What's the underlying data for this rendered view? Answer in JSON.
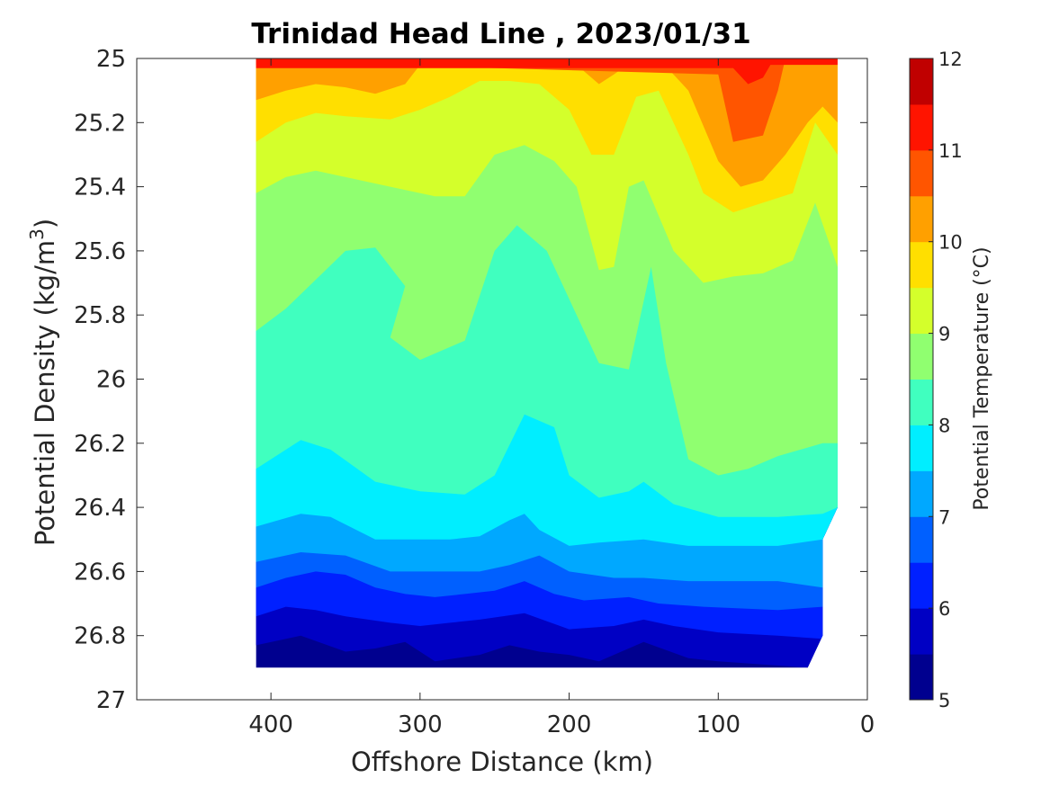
{
  "chart_data": {
    "type": "contour",
    "title": "Trinidad Head Line , 2023/01/31",
    "xlabel": "Offshore Distance (km)",
    "ylabel": "Potential Density (kg/m",
    "ylabel_sup": "3",
    "ylabel_close": ")",
    "xlim": [
      490,
      0
    ],
    "ylim": [
      25,
      27
    ],
    "y_reversed": true,
    "x_ticks": [
      "400",
      "300",
      "200",
      "100",
      "0"
    ],
    "x_tick_values": [
      400,
      300,
      200,
      100,
      0
    ],
    "y_ticks": [
      "25",
      "25.2",
      "25.4",
      "25.6",
      "25.8",
      "26",
      "26.2",
      "26.4",
      "26.6",
      "26.8",
      "27"
    ],
    "y_tick_values": [
      25,
      25.2,
      25.4,
      25.6,
      25.8,
      26,
      26.2,
      26.4,
      26.6,
      26.8,
      27
    ],
    "colorbar": {
      "label": "Potential Temperature (°C)",
      "range": [
        5,
        12
      ],
      "ticks": [
        "5",
        "6",
        "7",
        "8",
        "9",
        "10",
        "11",
        "12"
      ],
      "tick_values": [
        5,
        6,
        7,
        8,
        9,
        10,
        11,
        12
      ],
      "levels": [
        {
          "min": 5,
          "max": 5.5,
          "color": "#00008f"
        },
        {
          "min": 5.5,
          "max": 6,
          "color": "#0000c4"
        },
        {
          "min": 6,
          "max": 6.5,
          "color": "#0020ff"
        },
        {
          "min": 6.5,
          "max": 7,
          "color": "#0060ff"
        },
        {
          "min": 7,
          "max": 7.5,
          "color": "#00a8ff"
        },
        {
          "min": 7.5,
          "max": 8,
          "color": "#00eeff"
        },
        {
          "min": 8,
          "max": 8.5,
          "color": "#40ffbf"
        },
        {
          "min": 8.5,
          "max": 9,
          "color": "#90ff70"
        },
        {
          "min": 9,
          "max": 9.5,
          "color": "#d4ff2b"
        },
        {
          "min": 9.5,
          "max": 10,
          "color": "#ffdf00"
        },
        {
          "min": 10,
          "max": 10.5,
          "color": "#ffa000"
        },
        {
          "min": 10.5,
          "max": 11,
          "color": "#ff5500"
        },
        {
          "min": 11,
          "max": 11.5,
          "color": "#ff1400"
        },
        {
          "min": 11.5,
          "max": 12,
          "color": "#c00000"
        }
      ]
    },
    "data_extent": {
      "x_range": [
        410,
        20
      ],
      "y_range": [
        25,
        26.9
      ],
      "bottom_edge": [
        [
          410,
          26.9
        ],
        [
          40,
          26.9
        ],
        [
          30,
          26.8
        ],
        [
          30,
          26.5
        ],
        [
          20,
          26.4
        ],
        [
          20,
          25
        ]
      ]
    },
    "isolines": [
      {
        "level": 5.5,
        "points": [
          [
            410,
            26.83
          ],
          [
            380,
            26.8
          ],
          [
            350,
            26.85
          ],
          [
            330,
            26.84
          ],
          [
            310,
            26.82
          ],
          [
            290,
            26.88
          ],
          [
            260,
            26.86
          ],
          [
            240,
            26.83
          ],
          [
            220,
            26.85
          ],
          [
            200,
            26.86
          ],
          [
            180,
            26.88
          ],
          [
            150,
            26.82
          ],
          [
            120,
            26.87
          ],
          [
            100,
            26.88
          ],
          [
            40,
            26.9
          ]
        ]
      },
      {
        "level": 6,
        "points": [
          [
            410,
            26.74
          ],
          [
            390,
            26.71
          ],
          [
            370,
            26.72
          ],
          [
            350,
            26.74
          ],
          [
            320,
            26.76
          ],
          [
            300,
            26.77
          ],
          [
            280,
            26.76
          ],
          [
            260,
            26.75
          ],
          [
            230,
            26.73
          ],
          [
            200,
            26.78
          ],
          [
            170,
            26.77
          ],
          [
            150,
            26.75
          ],
          [
            130,
            26.77
          ],
          [
            100,
            26.79
          ],
          [
            60,
            26.8
          ],
          [
            30,
            26.81
          ]
        ]
      },
      {
        "level": 6.5,
        "points": [
          [
            410,
            26.65
          ],
          [
            390,
            26.62
          ],
          [
            370,
            26.6
          ],
          [
            350,
            26.61
          ],
          [
            330,
            26.65
          ],
          [
            310,
            26.67
          ],
          [
            290,
            26.68
          ],
          [
            270,
            26.67
          ],
          [
            250,
            26.66
          ],
          [
            230,
            26.63
          ],
          [
            210,
            26.67
          ],
          [
            190,
            26.69
          ],
          [
            160,
            26.68
          ],
          [
            140,
            26.7
          ],
          [
            110,
            26.71
          ],
          [
            60,
            26.72
          ],
          [
            30,
            26.71
          ]
        ]
      },
      {
        "level": 7,
        "points": [
          [
            410,
            26.57
          ],
          [
            380,
            26.54
          ],
          [
            350,
            26.55
          ],
          [
            320,
            26.6
          ],
          [
            290,
            26.6
          ],
          [
            260,
            26.6
          ],
          [
            240,
            26.58
          ],
          [
            220,
            26.55
          ],
          [
            200,
            26.6
          ],
          [
            170,
            26.62
          ],
          [
            150,
            26.62
          ],
          [
            120,
            26.63
          ],
          [
            90,
            26.63
          ],
          [
            60,
            26.63
          ],
          [
            30,
            26.65
          ]
        ]
      },
      {
        "level": 7.5,
        "points": [
          [
            410,
            26.46
          ],
          [
            380,
            26.42
          ],
          [
            360,
            26.43
          ],
          [
            330,
            26.5
          ],
          [
            300,
            26.5
          ],
          [
            280,
            26.5
          ],
          [
            260,
            26.49
          ],
          [
            240,
            26.44
          ],
          [
            230,
            26.42
          ],
          [
            220,
            26.47
          ],
          [
            200,
            26.52
          ],
          [
            180,
            26.51
          ],
          [
            150,
            26.5
          ],
          [
            120,
            26.52
          ],
          [
            90,
            26.52
          ],
          [
            60,
            26.52
          ],
          [
            30,
            26.5
          ]
        ]
      },
      {
        "level": 8,
        "points": [
          [
            410,
            26.28
          ],
          [
            380,
            26.19
          ],
          [
            360,
            26.22
          ],
          [
            330,
            26.32
          ],
          [
            300,
            26.35
          ],
          [
            270,
            26.36
          ],
          [
            250,
            26.3
          ],
          [
            230,
            26.11
          ],
          [
            210,
            26.15
          ],
          [
            200,
            26.3
          ],
          [
            180,
            26.37
          ],
          [
            160,
            26.35
          ],
          [
            150,
            26.32
          ],
          [
            130,
            26.39
          ],
          [
            100,
            26.43
          ],
          [
            60,
            26.43
          ],
          [
            30,
            26.42
          ],
          [
            20,
            26.4
          ]
        ]
      },
      {
        "level": 8.5,
        "points": [
          [
            410,
            25.85
          ],
          [
            390,
            25.78
          ],
          [
            370,
            25.69
          ],
          [
            350,
            25.6
          ],
          [
            330,
            25.59
          ],
          [
            310,
            25.71
          ],
          [
            320,
            25.87
          ],
          [
            300,
            25.94
          ],
          [
            270,
            25.88
          ],
          [
            250,
            25.6
          ],
          [
            235,
            25.52
          ],
          [
            215,
            25.6
          ],
          [
            200,
            25.75
          ],
          [
            180,
            25.95
          ],
          [
            160,
            25.97
          ],
          [
            145,
            25.65
          ],
          [
            135,
            25.95
          ],
          [
            120,
            26.25
          ],
          [
            100,
            26.3
          ],
          [
            80,
            26.28
          ],
          [
            60,
            26.24
          ],
          [
            30,
            26.2
          ],
          [
            20,
            26.2
          ]
        ]
      },
      {
        "level": 9,
        "points": [
          [
            410,
            25.42
          ],
          [
            390,
            25.37
          ],
          [
            370,
            25.35
          ],
          [
            350,
            25.37
          ],
          [
            320,
            25.4
          ],
          [
            290,
            25.43
          ],
          [
            270,
            25.43
          ],
          [
            250,
            25.3
          ],
          [
            230,
            25.27
          ],
          [
            210,
            25.32
          ],
          [
            195,
            25.4
          ],
          [
            180,
            25.66
          ],
          [
            170,
            25.65
          ],
          [
            160,
            25.4
          ],
          [
            150,
            25.38
          ],
          [
            130,
            25.6
          ],
          [
            110,
            25.7
          ],
          [
            90,
            25.68
          ],
          [
            70,
            25.67
          ],
          [
            50,
            25.63
          ],
          [
            35,
            25.45
          ],
          [
            20,
            25.65
          ]
        ]
      },
      {
        "level": 9.5,
        "points": [
          [
            410,
            25.26
          ],
          [
            390,
            25.2
          ],
          [
            370,
            25.17
          ],
          [
            350,
            25.18
          ],
          [
            320,
            25.19
          ],
          [
            300,
            25.16
          ],
          [
            280,
            25.12
          ],
          [
            260,
            25.07
          ],
          [
            240,
            25.07
          ],
          [
            220,
            25.08
          ],
          [
            200,
            25.16
          ],
          [
            185,
            25.3
          ],
          [
            170,
            25.3
          ],
          [
            155,
            25.12
          ],
          [
            140,
            25.1
          ],
          [
            120,
            25.3
          ],
          [
            110,
            25.42
          ],
          [
            90,
            25.48
          ],
          [
            70,
            25.45
          ],
          [
            50,
            25.42
          ],
          [
            35,
            25.2
          ],
          [
            20,
            25.3
          ]
        ]
      },
      {
        "level": 10,
        "points": [
          [
            410,
            25.13
          ],
          [
            390,
            25.1
          ],
          [
            370,
            25.08
          ],
          [
            350,
            25.09
          ],
          [
            330,
            25.11
          ],
          [
            310,
            25.08
          ],
          [
            300,
            25.02
          ],
          [
            280,
            25.0
          ],
          [
            200,
            25.0
          ],
          [
            180,
            25.08
          ],
          [
            170,
            25.05
          ],
          [
            155,
            25.0
          ],
          [
            140,
            25.0
          ],
          [
            120,
            25.1
          ],
          [
            100,
            25.32
          ],
          [
            85,
            25.4
          ],
          [
            70,
            25.38
          ],
          [
            55,
            25.3
          ],
          [
            40,
            25.2
          ],
          [
            30,
            25.15
          ],
          [
            20,
            25.2
          ]
        ]
      },
      {
        "level": 10.5,
        "points": [
          [
            410,
            25.02
          ],
          [
            400,
            25.01
          ],
          [
            100,
            25.05
          ],
          [
            90,
            25.26
          ],
          [
            70,
            25.24
          ],
          [
            60,
            25.1
          ],
          [
            55,
            25.0
          ]
        ]
      },
      {
        "level": 11,
        "points": [
          [
            90,
            25.03
          ],
          [
            80,
            25.08
          ],
          [
            70,
            25.06
          ],
          [
            65,
            25.02
          ]
        ]
      }
    ]
  }
}
